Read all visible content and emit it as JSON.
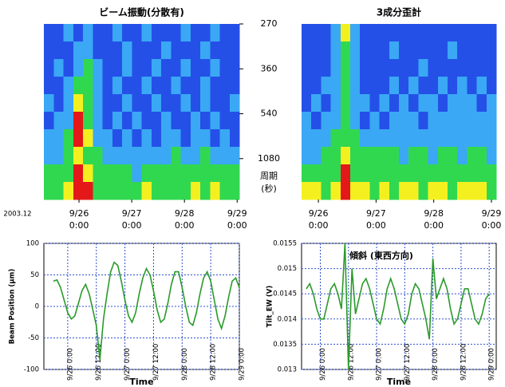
{
  "chart_data": [
    {
      "type": "heatmap",
      "title": "ビーム振動(分散有)",
      "xlim": [
        -16,
        73
      ],
      "xticks": [
        {
          "value": 0,
          "label": [
            "9/26",
            "0:00"
          ]
        },
        {
          "value": 24,
          "label": [
            "9/27",
            "0:00"
          ]
        },
        {
          "value": 48,
          "label": [
            "9/28",
            "0:00"
          ]
        },
        {
          "value": 72,
          "label": [
            "9/29",
            "0:00"
          ]
        }
      ],
      "x_note": "2003.12",
      "yscale": "reciprocal",
      "ylim": [
        270,
        12000
      ],
      "yticks": [
        270,
        360,
        540,
        1080
      ],
      "y_label": [
        "周期",
        "(秒)"
      ],
      "colors": [
        "#1c2cc8",
        "#2450e8",
        "#3aa8f4",
        "#30d850",
        "#f4f020",
        "#e41818"
      ],
      "z": [
        [
          1,
          1,
          2,
          1,
          2,
          1,
          1,
          2,
          1,
          1,
          2,
          1,
          1,
          1,
          2,
          1,
          1,
          2,
          1,
          1
        ],
        [
          1,
          1,
          1,
          2,
          2,
          1,
          1,
          1,
          2,
          1,
          1,
          1,
          2,
          1,
          1,
          1,
          2,
          1,
          1,
          1
        ],
        [
          1,
          2,
          1,
          2,
          3,
          2,
          1,
          1,
          2,
          1,
          1,
          2,
          1,
          1,
          2,
          1,
          1,
          2,
          1,
          1
        ],
        [
          1,
          1,
          2,
          3,
          3,
          2,
          1,
          2,
          1,
          1,
          2,
          1,
          1,
          2,
          1,
          1,
          2,
          1,
          1,
          1
        ],
        [
          2,
          1,
          2,
          4,
          3,
          2,
          1,
          1,
          2,
          1,
          1,
          2,
          1,
          1,
          2,
          1,
          2,
          1,
          1,
          2
        ],
        [
          1,
          2,
          2,
          5,
          3,
          2,
          1,
          2,
          1,
          2,
          1,
          1,
          2,
          1,
          1,
          2,
          1,
          2,
          1,
          1
        ],
        [
          2,
          2,
          3,
          5,
          4,
          2,
          2,
          1,
          2,
          1,
          2,
          1,
          2,
          2,
          1,
          2,
          2,
          1,
          2,
          1
        ],
        [
          2,
          2,
          3,
          4,
          3,
          3,
          2,
          2,
          2,
          2,
          2,
          2,
          2,
          3,
          2,
          2,
          3,
          2,
          2,
          2
        ],
        [
          3,
          3,
          3,
          5,
          4,
          3,
          3,
          3,
          3,
          2,
          3,
          3,
          3,
          3,
          3,
          3,
          3,
          3,
          3,
          3
        ],
        [
          3,
          3,
          4,
          5,
          5,
          3,
          3,
          3,
          3,
          3,
          4,
          3,
          3,
          3,
          3,
          4,
          3,
          4,
          3,
          3
        ]
      ]
    },
    {
      "type": "heatmap",
      "title": "3成分歪計",
      "xlim": [
        -7,
        74
      ],
      "xticks": [
        {
          "value": 0,
          "label": [
            "9/26",
            "0:00"
          ]
        },
        {
          "value": 24,
          "label": [
            "9/27",
            "0:00"
          ]
        },
        {
          "value": 48,
          "label": [
            "9/28",
            "0:00"
          ]
        },
        {
          "value": 72,
          "label": [
            "9/29",
            "0:00"
          ]
        }
      ],
      "colors": [
        "#1c2cc8",
        "#2450e8",
        "#3aa8f4",
        "#30d850",
        "#f4f020",
        "#e41818"
      ],
      "z": [
        [
          1,
          1,
          1,
          2,
          4,
          2,
          1,
          1,
          1,
          1,
          1,
          1,
          1,
          1,
          1,
          1,
          1,
          1,
          1,
          1
        ],
        [
          1,
          1,
          1,
          2,
          3,
          2,
          1,
          1,
          1,
          2,
          1,
          1,
          1,
          1,
          1,
          2,
          1,
          1,
          1,
          1
        ],
        [
          1,
          1,
          1,
          2,
          3,
          2,
          1,
          1,
          1,
          1,
          1,
          1,
          2,
          1,
          1,
          1,
          1,
          1,
          1,
          1
        ],
        [
          1,
          1,
          2,
          2,
          3,
          2,
          1,
          1,
          1,
          2,
          1,
          2,
          1,
          1,
          2,
          1,
          2,
          1,
          2,
          1
        ],
        [
          1,
          2,
          1,
          2,
          3,
          2,
          2,
          1,
          2,
          1,
          2,
          1,
          2,
          2,
          1,
          2,
          2,
          2,
          1,
          2
        ],
        [
          2,
          1,
          2,
          2,
          3,
          2,
          1,
          2,
          1,
          2,
          2,
          2,
          1,
          2,
          2,
          2,
          2,
          2,
          2,
          2
        ],
        [
          2,
          2,
          2,
          3,
          3,
          3,
          2,
          2,
          2,
          2,
          2,
          2,
          2,
          2,
          2,
          2,
          2,
          2,
          2,
          2
        ],
        [
          2,
          2,
          3,
          3,
          4,
          3,
          3,
          3,
          3,
          3,
          2,
          3,
          3,
          2,
          3,
          3,
          2,
          3,
          3,
          2
        ],
        [
          3,
          3,
          3,
          3,
          5,
          3,
          3,
          3,
          3,
          3,
          3,
          3,
          3,
          3,
          3,
          3,
          3,
          3,
          3,
          3
        ],
        [
          4,
          4,
          3,
          4,
          5,
          4,
          4,
          3,
          4,
          3,
          4,
          4,
          3,
          4,
          4,
          3,
          4,
          4,
          4,
          3
        ]
      ]
    },
    {
      "type": "line",
      "y_label": "Beam Position (μm)",
      "x_label": "Time",
      "xlim": [
        -10,
        72
      ],
      "xticks": [
        {
          "value": 0,
          "label": "9/26 0:00"
        },
        {
          "value": 12,
          "label": "9/26 12:00"
        },
        {
          "value": 24,
          "label": "9/27 0:00"
        },
        {
          "value": 36,
          "label": "9/27 12:00"
        },
        {
          "value": 48,
          "label": "9/28 0:00"
        },
        {
          "value": 60,
          "label": "9/28 12:00"
        },
        {
          "value": 72,
          "label": "9/29 0:00"
        }
      ],
      "ylim": [
        -100,
        100
      ],
      "yticks": [
        -100,
        -50,
        0,
        50,
        100
      ],
      "grid": true,
      "color": "#2a9a2a",
      "x": [
        -6,
        -4.5,
        -3,
        -1.5,
        0,
        1.5,
        3,
        4.5,
        6,
        7.5,
        9,
        10.5,
        12,
        13.5,
        15,
        16.5,
        18,
        19.5,
        21,
        22.5,
        24,
        25.5,
        27,
        28.5,
        30,
        31.5,
        33,
        34.5,
        36,
        37.5,
        39,
        40.5,
        42,
        43.5,
        45,
        46.5,
        48,
        49.5,
        51,
        52.5,
        54,
        55.5,
        57,
        58.5,
        60,
        61.5,
        63,
        64.5,
        66,
        67.5,
        69,
        70.5,
        72
      ],
      "values": [
        40,
        42,
        30,
        10,
        -10,
        -20,
        -15,
        5,
        25,
        35,
        20,
        -5,
        -30,
        -85,
        -20,
        20,
        55,
        70,
        65,
        40,
        10,
        -15,
        -25,
        -10,
        20,
        45,
        60,
        50,
        25,
        -5,
        -25,
        -20,
        5,
        35,
        55,
        55,
        30,
        0,
        -25,
        -30,
        -10,
        20,
        45,
        55,
        40,
        10,
        -20,
        -35,
        -15,
        15,
        40,
        45,
        30
      ]
    },
    {
      "type": "line",
      "y_label": "Tilt_EW (V)",
      "x_label": "Time",
      "annotation": "傾斜 (東西方向)",
      "xlim": [
        -8,
        75
      ],
      "xticks": [
        {
          "value": 0,
          "label": "9/26 0:00"
        },
        {
          "value": 12,
          "label": "9/26 12:00"
        },
        {
          "value": 24,
          "label": "9/27 0:00"
        },
        {
          "value": 36,
          "label": "9/27 12:00"
        },
        {
          "value": 48,
          "label": "9/28 0:00"
        },
        {
          "value": 60,
          "label": "9/28 12:00"
        },
        {
          "value": 72,
          "label": "9/29 0:00"
        }
      ],
      "ylim": [
        0.013,
        0.0155
      ],
      "yticks": [
        0.013,
        0.0135,
        0.014,
        0.0145,
        0.015,
        0.0155
      ],
      "grid": true,
      "color": "#2a9a2a",
      "x": [
        -6,
        -4.5,
        -3,
        -1.5,
        0,
        1.5,
        3,
        4.5,
        6,
        7.5,
        9,
        10.5,
        12,
        13.5,
        15,
        16.5,
        18,
        19.5,
        21,
        22.5,
        24,
        25.5,
        27,
        28.5,
        30,
        31.5,
        33,
        34.5,
        36,
        37.5,
        39,
        40.5,
        42,
        43.5,
        45,
        46.5,
        48,
        49.5,
        51,
        52.5,
        54,
        55.5,
        57,
        58.5,
        60,
        61.5,
        63,
        64.5,
        66,
        67.5,
        69,
        70.5,
        72
      ],
      "values": [
        0.0146,
        0.0147,
        0.0145,
        0.0142,
        0.014,
        0.014,
        0.0143,
        0.0146,
        0.0147,
        0.0145,
        0.0142,
        0.0155,
        0.013,
        0.015,
        0.0141,
        0.0144,
        0.0147,
        0.0148,
        0.0146,
        0.0143,
        0.014,
        0.0139,
        0.0142,
        0.0146,
        0.0148,
        0.0146,
        0.0143,
        0.014,
        0.0139,
        0.0141,
        0.0145,
        0.0147,
        0.0146,
        0.0143,
        0.014,
        0.0136,
        0.0152,
        0.0144,
        0.0146,
        0.0148,
        0.0146,
        0.0142,
        0.0139,
        0.014,
        0.0143,
        0.0146,
        0.0146,
        0.0143,
        0.014,
        0.0139,
        0.0141,
        0.0144,
        0.0145
      ]
    }
  ]
}
